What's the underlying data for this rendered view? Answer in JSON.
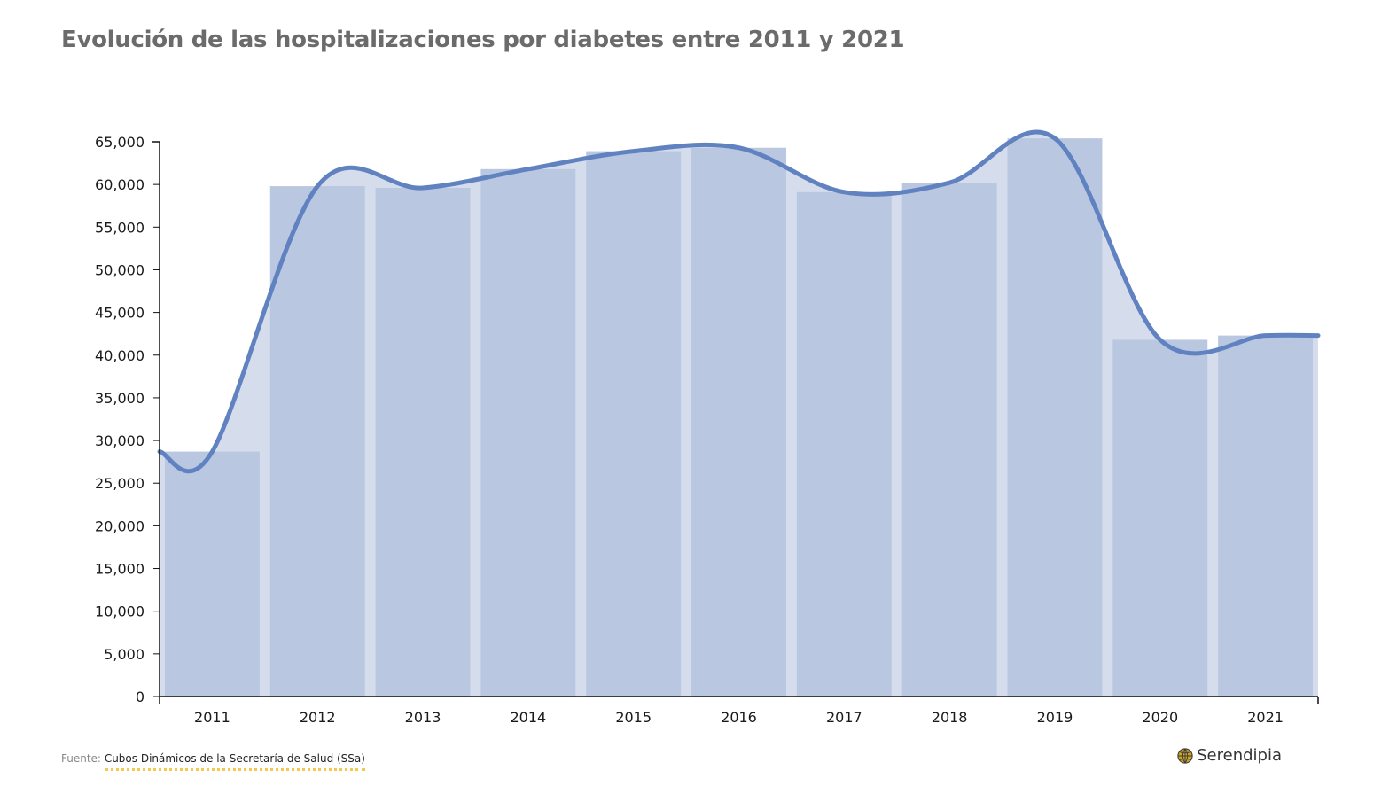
{
  "title": "Evolución de las hospitalizaciones por diabetes entre 2011 y 2021",
  "footer": {
    "source_prefix": "Fuente:",
    "source_link": "Cubos Dinámicos de la Secretaría de Salud (SSa)",
    "brand": "Serendipia"
  },
  "colors": {
    "bar": "#b9c7e1",
    "area": "#d5dded",
    "line": "#6182c0",
    "title": "#6b6b6b"
  },
  "chart_data": {
    "type": "bar",
    "categories": [
      "2011",
      "2012",
      "2013",
      "2014",
      "2015",
      "2016",
      "2017",
      "2018",
      "2019",
      "2020",
      "2021"
    ],
    "values": [
      28700,
      59800,
      59600,
      61800,
      63900,
      64300,
      59100,
      60200,
      65400,
      41800,
      42300
    ],
    "overlay": "smoothed line with shaded area",
    "yticks": [
      "0",
      "5,000",
      "10,000",
      "15,000",
      "20,000",
      "25,000",
      "30,000",
      "35,000",
      "40,000",
      "45,000",
      "50,000",
      "55,000",
      "60,000",
      "65,000"
    ],
    "ylim": [
      0,
      65000
    ],
    "title": "Evolución de las hospitalizaciones por diabetes entre 2011 y 2021",
    "xlabel": "",
    "ylabel": "",
    "grid": false,
    "legend": "none"
  }
}
